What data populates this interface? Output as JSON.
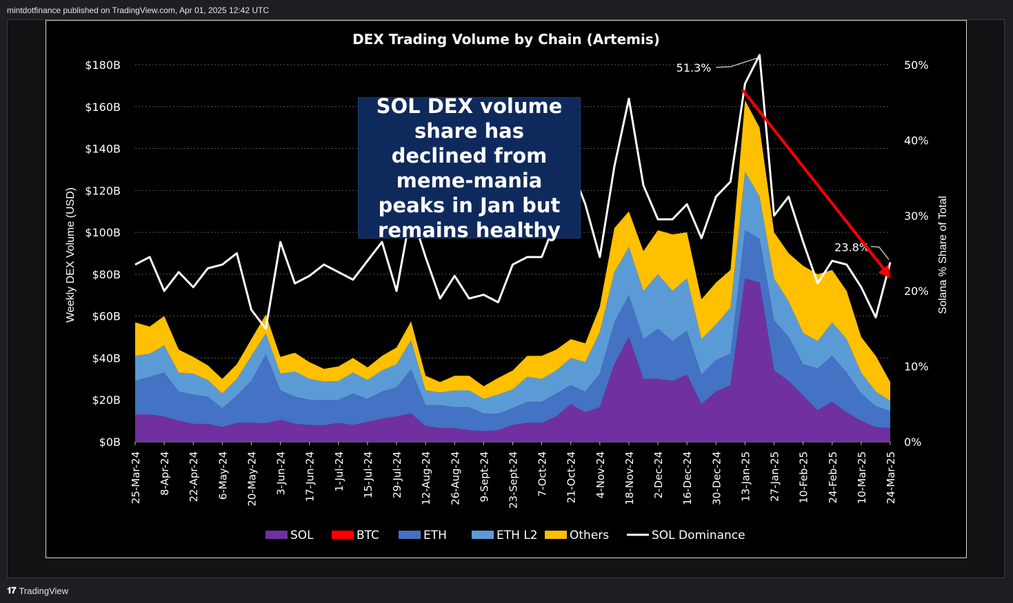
{
  "header": {
    "publisher_line": "mintdotfinance published on TradingView.com, Apr 01, 2025 12:42 UTC"
  },
  "footer": {
    "brand_label": "TradingView",
    "brand_icon": "tradingview-logo-icon"
  },
  "callout": {
    "text": "SOL DEX volume share has declined from meme-mania peaks in Jan but remains healthy"
  },
  "colors": {
    "SOL": "#7030a0",
    "BTC": "#ff0000",
    "ETH": "#4472c4",
    "ETH L2": "#5b9bd5",
    "Others": "#ffc000",
    "SOL Dominance": "#ffffff",
    "arrow": "#ff0000"
  },
  "chart_data": {
    "type": "area",
    "title": "DEX Trading Volume by Chain (Artemis)",
    "ylabel": "Weekly DEX Volume (USD)",
    "y2label": "Solana % Share of Total",
    "ylim": [
      0,
      180
    ],
    "y2lim": [
      0,
      50
    ],
    "y_ticks": [
      "$0B",
      "$20B",
      "$40B",
      "$60B",
      "$80B",
      "$100B",
      "$120B",
      "$140B",
      "$160B",
      "$180B"
    ],
    "y2_ticks": [
      "0%",
      "10%",
      "20%",
      "30%",
      "40%",
      "50%"
    ],
    "x_tick_labels": [
      "25-Mar-24",
      "8-Apr-24",
      "22-Apr-24",
      "6-May-24",
      "20-May-24",
      "3-Jun-24",
      "17-Jun-24",
      "1-Jul-24",
      "15-Jul-24",
      "29-Jul-24",
      "12-Aug-24",
      "26-Aug-24",
      "9-Sept-24",
      "23-Sept-24",
      "7-Oct-24",
      "21-Oct-24",
      "4-Nov-24",
      "18-Nov-24",
      "2-Dec-24",
      "16-Dec-24",
      "30-Dec-24",
      "13-Jan-25",
      "27-Jan-25",
      "10-Feb-25",
      "24-Feb-25",
      "10-Mar-25",
      "24-Mar-25"
    ],
    "grid": true,
    "legend_position": "bottom",
    "legend": [
      "SOL",
      "BTC",
      "ETH",
      "ETH L2",
      "Others",
      "SOL Dominance"
    ],
    "units": "$B",
    "series": [
      {
        "name": "SOL",
        "stack": true,
        "values": [
          13,
          13,
          12,
          10,
          8.5,
          8.5,
          7,
          9,
          9,
          8.8,
          10.5,
          8.5,
          8,
          7.8,
          9,
          8,
          9.5,
          11,
          12,
          13.5,
          7.5,
          6.5,
          6.5,
          5.5,
          5,
          5.5,
          8,
          9,
          9,
          12,
          18,
          14,
          16.5,
          37,
          50,
          30,
          30,
          29,
          32,
          18,
          24,
          27,
          78,
          76,
          34,
          29,
          22,
          15,
          19,
          14,
          10,
          7,
          6.5
        ]
      },
      {
        "name": "BTC",
        "stack": true,
        "values": [
          0,
          0,
          0,
          0,
          0,
          0,
          0,
          0,
          0,
          0,
          0,
          0,
          0,
          0,
          0,
          0,
          0,
          0,
          0,
          0,
          0,
          0,
          0,
          0,
          0,
          0,
          0,
          0,
          0,
          0,
          0,
          0,
          0,
          0,
          0,
          0,
          0,
          0,
          0,
          0,
          0,
          0,
          0,
          0,
          0,
          0,
          0,
          0,
          0,
          0,
          0,
          0,
          0
        ]
      },
      {
        "name": "ETH",
        "stack": true,
        "values": [
          16,
          18,
          21,
          14,
          14,
          13,
          9,
          13,
          20,
          33,
          14,
          13,
          12,
          12,
          11,
          15,
          11,
          13,
          14,
          21,
          10,
          11,
          10,
          11,
          8.5,
          8,
          8,
          10,
          10,
          11,
          9,
          10,
          16,
          20,
          20,
          19,
          24,
          19,
          21,
          14,
          15,
          15,
          23,
          21,
          24,
          21,
          15,
          20,
          22,
          19,
          13,
          10,
          8
        ]
      },
      {
        "name": "ETH L2",
        "stack": true,
        "values": [
          12,
          11,
          13,
          9,
          10,
          8,
          7,
          8,
          12,
          10,
          8,
          12,
          10,
          9,
          9,
          10,
          9,
          10,
          11,
          14,
          7,
          6,
          8,
          8,
          7,
          9,
          9,
          12,
          11,
          11,
          13,
          14,
          20,
          24,
          23,
          23,
          26,
          24,
          25,
          17,
          17,
          22,
          28,
          20,
          20,
          17,
          15,
          13,
          16,
          16,
          10,
          7,
          5
        ]
      },
      {
        "name": "Others",
        "stack": true,
        "values": [
          16,
          13,
          14,
          11,
          8,
          7,
          7,
          7,
          8,
          9,
          8,
          9,
          8,
          6,
          7,
          7,
          6,
          7,
          8,
          9,
          7,
          5,
          7,
          7,
          6,
          8,
          9,
          10,
          11,
          10,
          9,
          9,
          12,
          21,
          17,
          19,
          21,
          27,
          22,
          19,
          20,
          18,
          34,
          33,
          22,
          23,
          32,
          32,
          25,
          23,
          17,
          17,
          9
        ]
      },
      {
        "name": "SOL Dominance",
        "axis": "right",
        "type": "line",
        "unit": "%",
        "values": [
          23.5,
          24.5,
          20,
          22.5,
          20.5,
          23,
          23.5,
          25,
          17.5,
          15,
          26.5,
          21,
          22,
          23.5,
          22.5,
          21.5,
          24,
          26.5,
          20,
          30.5,
          24.5,
          19,
          22,
          19,
          19.5,
          18.5,
          23.5,
          24.5,
          24.5,
          29.5,
          36.5,
          31.5,
          24.5,
          36.5,
          45.5,
          34,
          29.5,
          29.5,
          31.5,
          27,
          32.5,
          34.5,
          47.5,
          51.3,
          30,
          32.5,
          26.5,
          21,
          24,
          23.5,
          20.5,
          16.5,
          23.8
        ]
      }
    ],
    "annotations": [
      {
        "text": "51.3%",
        "target": "SOL Dominance peak"
      },
      {
        "text": "23.8%",
        "target": "SOL Dominance latest"
      },
      {
        "type": "arrow",
        "color": "red",
        "from_index": 42,
        "to_index": 51
      }
    ]
  }
}
